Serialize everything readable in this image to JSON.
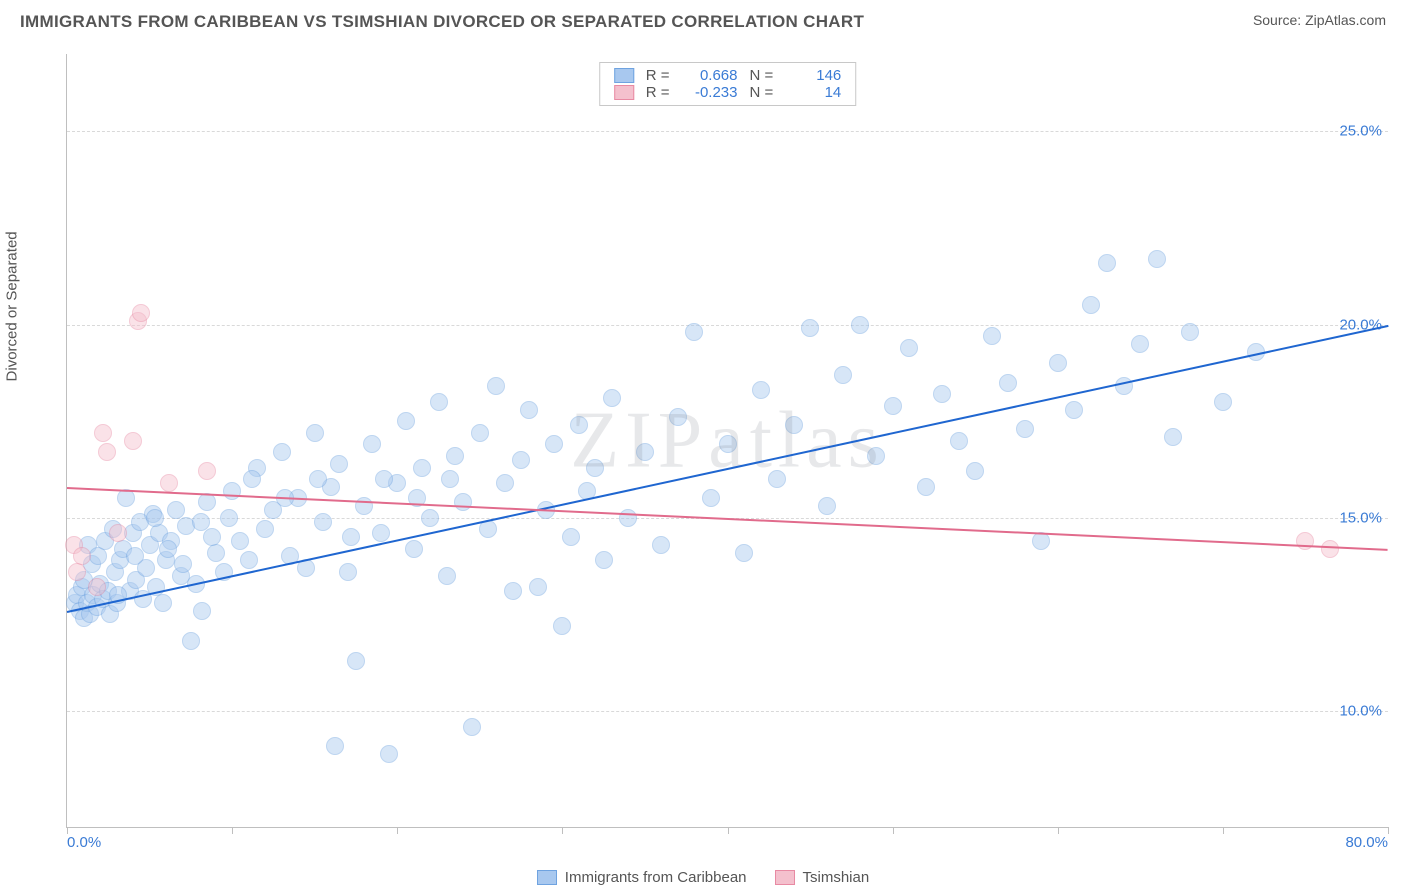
{
  "header": {
    "title": "IMMIGRANTS FROM CARIBBEAN VS TSIMSHIAN DIVORCED OR SEPARATED CORRELATION CHART",
    "source_prefix": "Source: ",
    "source": "ZipAtlas.com"
  },
  "watermark": "ZIPatlas",
  "chart": {
    "type": "scatter",
    "y_axis_title": "Divorced or Separated",
    "xlim": [
      0,
      80
    ],
    "ylim": [
      7,
      27
    ],
    "x_ticks": [
      0,
      10,
      20,
      30,
      40,
      50,
      60,
      70,
      80
    ],
    "x_tick_labels": {
      "0": "0.0%",
      "80": "80.0%"
    },
    "y_grid": [
      10,
      15,
      20,
      25
    ],
    "y_tick_labels": {
      "10": "10.0%",
      "15": "15.0%",
      "20": "20.0%",
      "25": "25.0%"
    },
    "background_color": "#ffffff",
    "grid_color": "#d9d9d9",
    "axis_color": "#bfbfbf",
    "label_fontsize": 15,
    "tick_fontcolor": "#3a7bd5",
    "marker_radius": 9,
    "marker_opacity": 0.45,
    "series": [
      {
        "name": "Immigrants from Caribbean",
        "fill": "#a8c8ef",
        "stroke": "#6fa3e0",
        "trend_color": "#1f66d0",
        "r": 0.668,
        "n": 146,
        "trend": {
          "x1": 0,
          "y1": 12.6,
          "x2": 80,
          "y2": 20.0
        },
        "points": [
          [
            0.5,
            12.8
          ],
          [
            0.6,
            13.0
          ],
          [
            0.8,
            12.6
          ],
          [
            0.9,
            13.2
          ],
          [
            1.0,
            12.4
          ],
          [
            1.0,
            13.4
          ],
          [
            1.2,
            12.8
          ],
          [
            1.3,
            14.3
          ],
          [
            1.4,
            12.5
          ],
          [
            1.5,
            13.8
          ],
          [
            1.6,
            13.0
          ],
          [
            1.8,
            12.7
          ],
          [
            1.9,
            14.0
          ],
          [
            2.0,
            13.3
          ],
          [
            2.2,
            12.9
          ],
          [
            2.3,
            14.4
          ],
          [
            2.5,
            13.1
          ],
          [
            2.6,
            12.5
          ],
          [
            2.8,
            14.7
          ],
          [
            2.9,
            13.6
          ],
          [
            3.0,
            12.8
          ],
          [
            3.2,
            13.9
          ],
          [
            3.4,
            14.2
          ],
          [
            3.6,
            15.5
          ],
          [
            3.8,
            13.1
          ],
          [
            4.0,
            14.6
          ],
          [
            4.2,
            13.4
          ],
          [
            4.4,
            14.9
          ],
          [
            4.6,
            12.9
          ],
          [
            4.8,
            13.7
          ],
          [
            5.0,
            14.3
          ],
          [
            5.2,
            15.1
          ],
          [
            5.4,
            13.2
          ],
          [
            5.6,
            14.6
          ],
          [
            5.8,
            12.8
          ],
          [
            6.0,
            13.9
          ],
          [
            6.3,
            14.4
          ],
          [
            6.6,
            15.2
          ],
          [
            6.9,
            13.5
          ],
          [
            7.2,
            14.8
          ],
          [
            7.5,
            11.8
          ],
          [
            7.8,
            13.3
          ],
          [
            8.1,
            14.9
          ],
          [
            8.5,
            15.4
          ],
          [
            9.0,
            14.1
          ],
          [
            9.5,
            13.6
          ],
          [
            10.0,
            15.7
          ],
          [
            10.5,
            14.4
          ],
          [
            11.0,
            13.9
          ],
          [
            11.5,
            16.3
          ],
          [
            12.0,
            14.7
          ],
          [
            12.5,
            15.2
          ],
          [
            13.0,
            16.7
          ],
          [
            13.5,
            14.0
          ],
          [
            14.0,
            15.5
          ],
          [
            14.5,
            13.7
          ],
          [
            15.0,
            17.2
          ],
          [
            15.5,
            14.9
          ],
          [
            16.0,
            15.8
          ],
          [
            16.5,
            16.4
          ],
          [
            17.0,
            13.6
          ],
          [
            17.5,
            11.3
          ],
          [
            18.0,
            15.3
          ],
          [
            18.5,
            16.9
          ],
          [
            19.0,
            14.6
          ],
          [
            19.5,
            8.9
          ],
          [
            20.0,
            15.9
          ],
          [
            20.5,
            17.5
          ],
          [
            21.0,
            14.2
          ],
          [
            21.5,
            16.3
          ],
          [
            22.0,
            15.0
          ],
          [
            22.5,
            18.0
          ],
          [
            23.0,
            13.5
          ],
          [
            23.5,
            16.6
          ],
          [
            24.0,
            15.4
          ],
          [
            24.5,
            9.6
          ],
          [
            25.0,
            17.2
          ],
          [
            25.5,
            14.7
          ],
          [
            26.0,
            18.4
          ],
          [
            26.5,
            15.9
          ],
          [
            27.0,
            13.1
          ],
          [
            27.5,
            16.5
          ],
          [
            28.0,
            17.8
          ],
          [
            28.5,
            13.2
          ],
          [
            29.0,
            15.2
          ],
          [
            29.5,
            16.9
          ],
          [
            30.0,
            12.2
          ],
          [
            30.5,
            14.5
          ],
          [
            31.0,
            17.4
          ],
          [
            31.5,
            15.7
          ],
          [
            32.0,
            16.3
          ],
          [
            32.5,
            13.9
          ],
          [
            33.0,
            18.1
          ],
          [
            34.0,
            15.0
          ],
          [
            35.0,
            16.7
          ],
          [
            36.0,
            14.3
          ],
          [
            37.0,
            17.6
          ],
          [
            38.0,
            19.8
          ],
          [
            39.0,
            15.5
          ],
          [
            40.0,
            16.9
          ],
          [
            41.0,
            14.1
          ],
          [
            42.0,
            18.3
          ],
          [
            43.0,
            16.0
          ],
          [
            44.0,
            17.4
          ],
          [
            45.0,
            19.9
          ],
          [
            46.0,
            15.3
          ],
          [
            47.0,
            18.7
          ],
          [
            48.0,
            20.0
          ],
          [
            49.0,
            16.6
          ],
          [
            50.0,
            17.9
          ],
          [
            51.0,
            19.4
          ],
          [
            52.0,
            15.8
          ],
          [
            53.0,
            18.2
          ],
          [
            54.0,
            17.0
          ],
          [
            55.0,
            16.2
          ],
          [
            56.0,
            19.7
          ],
          [
            57.0,
            18.5
          ],
          [
            58.0,
            17.3
          ],
          [
            59.0,
            14.4
          ],
          [
            60.0,
            19.0
          ],
          [
            61.0,
            17.8
          ],
          [
            62.0,
            20.5
          ],
          [
            63.0,
            21.6
          ],
          [
            64.0,
            18.4
          ],
          [
            65.0,
            19.5
          ],
          [
            66.0,
            21.7
          ],
          [
            67.0,
            17.1
          ],
          [
            68.0,
            19.8
          ],
          [
            70.0,
            18.0
          ],
          [
            72.0,
            19.3
          ],
          [
            3.1,
            13.0
          ],
          [
            4.1,
            14.0
          ],
          [
            5.3,
            15.0
          ],
          [
            6.1,
            14.2
          ],
          [
            7.0,
            13.8
          ],
          [
            8.8,
            14.5
          ],
          [
            9.8,
            15.0
          ],
          [
            11.2,
            16.0
          ],
          [
            13.2,
            15.5
          ],
          [
            15.2,
            16.0
          ],
          [
            17.2,
            14.5
          ],
          [
            19.2,
            16.0
          ],
          [
            21.2,
            15.5
          ],
          [
            23.2,
            16.0
          ],
          [
            8.2,
            12.6
          ],
          [
            16.2,
            9.1
          ]
        ]
      },
      {
        "name": "Tsimshian",
        "fill": "#f4c0cd",
        "stroke": "#e88aa3",
        "trend_color": "#e16b8c",
        "r": -0.233,
        "n": 14,
        "trend": {
          "x1": 0,
          "y1": 15.8,
          "x2": 80,
          "y2": 14.2
        },
        "points": [
          [
            0.4,
            14.3
          ],
          [
            0.6,
            13.6
          ],
          [
            0.9,
            14.0
          ],
          [
            1.8,
            13.2
          ],
          [
            2.2,
            17.2
          ],
          [
            2.4,
            16.7
          ],
          [
            3.1,
            14.6
          ],
          [
            4.0,
            17.0
          ],
          [
            4.3,
            20.1
          ],
          [
            4.5,
            20.3
          ],
          [
            6.2,
            15.9
          ],
          [
            8.5,
            16.2
          ],
          [
            75.0,
            14.4
          ],
          [
            76.5,
            14.2
          ]
        ]
      }
    ]
  },
  "bottom_legend": [
    {
      "label": "Immigrants from Caribbean",
      "fill": "#a8c8ef",
      "stroke": "#6fa3e0"
    },
    {
      "label": "Tsimshian",
      "fill": "#f4c0cd",
      "stroke": "#e88aa3"
    }
  ]
}
